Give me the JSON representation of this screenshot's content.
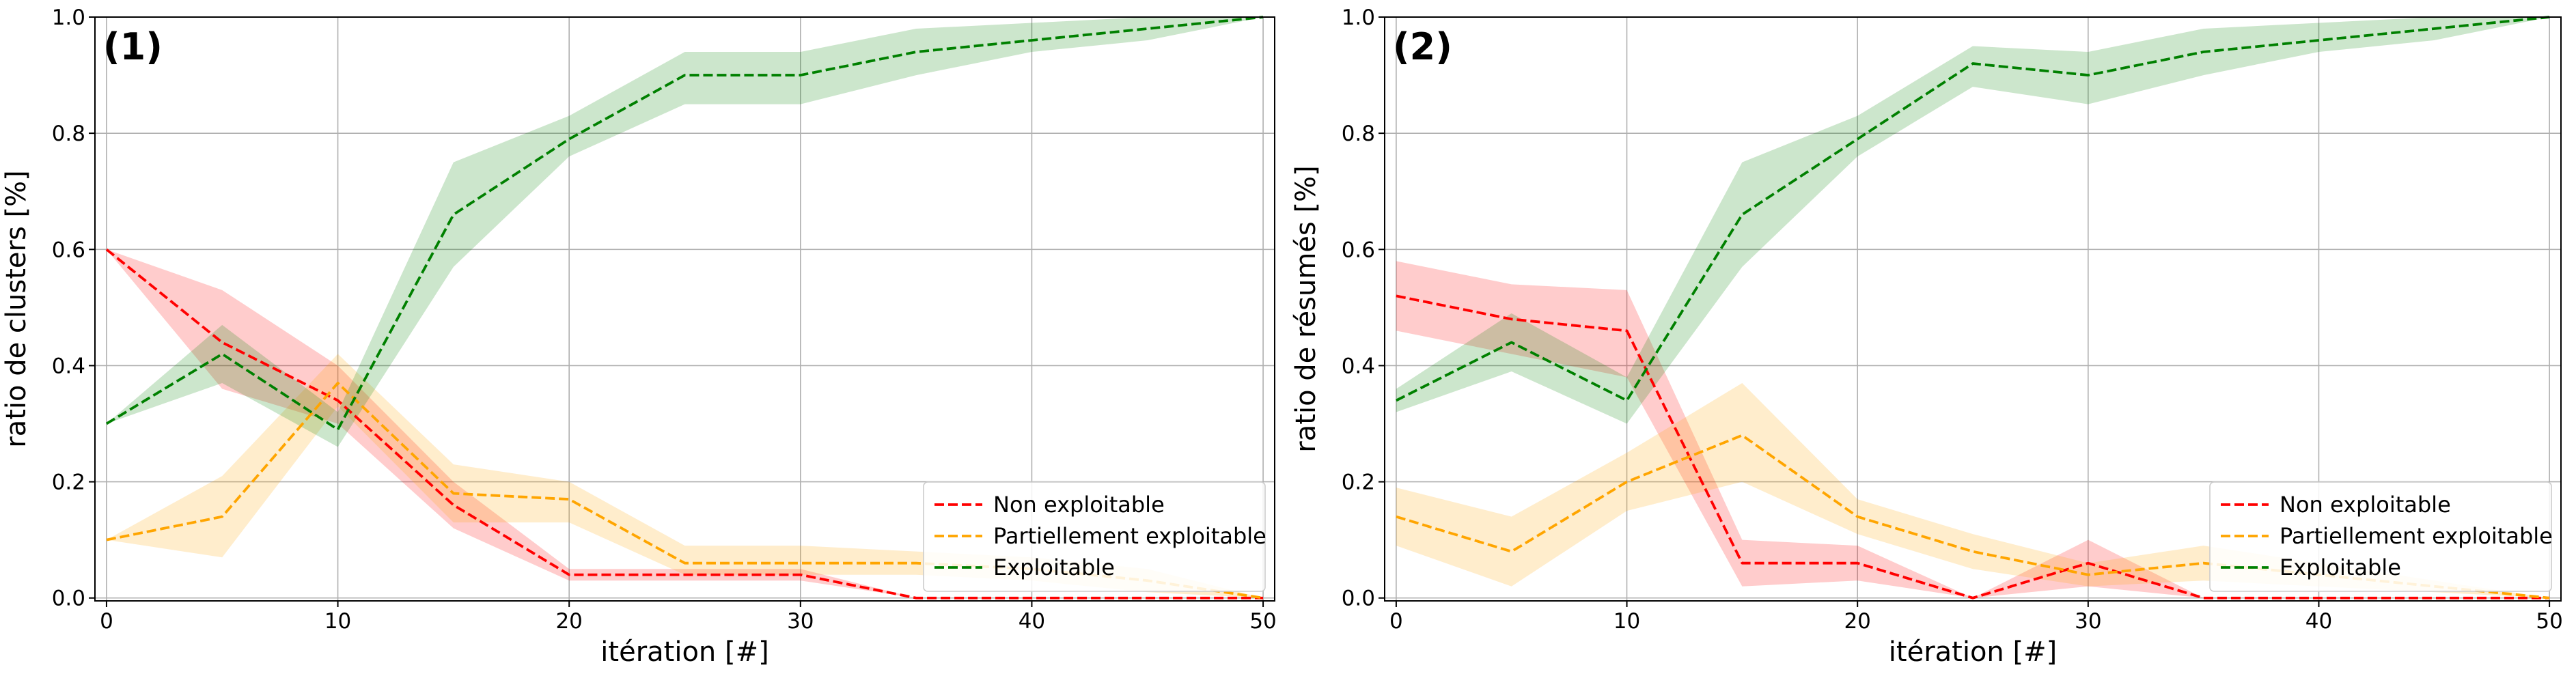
{
  "chart_data": [
    {
      "type": "line",
      "panel_label": "(1)",
      "xlabel": "itération [#]",
      "ylabel": "ratio de clusters [%]",
      "xlim": [
        -0.5,
        50.5
      ],
      "ylim": [
        -0.005,
        1.0
      ],
      "xticks": [
        0,
        10,
        20,
        30,
        40,
        50
      ],
      "yticks": [
        "0.0",
        "0.2",
        "0.4",
        "0.6",
        "0.8",
        "1.0"
      ],
      "grid": true,
      "legend_position": "lower-right",
      "x": [
        0,
        5,
        10,
        15,
        20,
        25,
        30,
        35,
        40,
        45,
        50
      ],
      "series": [
        {
          "name": "Non exploitable",
          "color": "#ff0000",
          "values": [
            0.6,
            0.44,
            0.34,
            0.16,
            0.04,
            0.04,
            0.04,
            0.0,
            0.0,
            0.0,
            0.0
          ],
          "lower": [
            0.6,
            0.36,
            0.3,
            0.12,
            0.03,
            0.03,
            0.03,
            0.0,
            0.0,
            0.0,
            0.0
          ],
          "upper": [
            0.6,
            0.53,
            0.4,
            0.2,
            0.05,
            0.05,
            0.05,
            0.0,
            0.0,
            0.0,
            0.0
          ]
        },
        {
          "name": "Partiellement exploitable",
          "color": "#ffa500",
          "values": [
            0.1,
            0.14,
            0.37,
            0.18,
            0.17,
            0.06,
            0.06,
            0.06,
            0.05,
            0.03,
            0.0
          ],
          "lower": [
            0.1,
            0.07,
            0.33,
            0.13,
            0.13,
            0.04,
            0.04,
            0.04,
            0.03,
            0.01,
            0.0
          ],
          "upper": [
            0.1,
            0.21,
            0.42,
            0.23,
            0.2,
            0.09,
            0.09,
            0.08,
            0.07,
            0.05,
            0.0
          ]
        },
        {
          "name": "Exploitable",
          "color": "#008000",
          "values": [
            0.3,
            0.42,
            0.29,
            0.66,
            0.79,
            0.9,
            0.9,
            0.94,
            0.96,
            0.98,
            1.0
          ],
          "lower": [
            0.3,
            0.37,
            0.26,
            0.57,
            0.76,
            0.85,
            0.85,
            0.9,
            0.94,
            0.96,
            1.0
          ],
          "upper": [
            0.3,
            0.47,
            0.32,
            0.75,
            0.83,
            0.94,
            0.94,
            0.98,
            0.99,
            1.0,
            1.0
          ]
        }
      ]
    },
    {
      "type": "line",
      "panel_label": "(2)",
      "xlabel": "itération [#]",
      "ylabel": "ratio de résumés [%]",
      "xlim": [
        -0.5,
        50.5
      ],
      "ylim": [
        -0.005,
        1.0
      ],
      "xticks": [
        0,
        10,
        20,
        30,
        40,
        50
      ],
      "yticks": [
        "0.0",
        "0.2",
        "0.4",
        "0.6",
        "0.8",
        "1.0"
      ],
      "grid": true,
      "legend_position": "lower-right",
      "x": [
        0,
        5,
        10,
        15,
        20,
        25,
        30,
        35,
        40,
        45,
        50
      ],
      "series": [
        {
          "name": "Non exploitable",
          "color": "#ff0000",
          "values": [
            0.52,
            0.48,
            0.46,
            0.06,
            0.06,
            0.0,
            0.06,
            0.0,
            0.0,
            0.0,
            0.0
          ],
          "lower": [
            0.46,
            0.42,
            0.38,
            0.02,
            0.03,
            0.0,
            0.02,
            0.0,
            0.0,
            0.0,
            0.0
          ],
          "upper": [
            0.58,
            0.54,
            0.53,
            0.1,
            0.09,
            0.0,
            0.1,
            0.0,
            0.0,
            0.0,
            0.0
          ]
        },
        {
          "name": "Partiellement exploitable",
          "color": "#ffa500",
          "values": [
            0.14,
            0.08,
            0.2,
            0.28,
            0.14,
            0.08,
            0.04,
            0.06,
            0.04,
            0.02,
            0.0
          ],
          "lower": [
            0.09,
            0.02,
            0.15,
            0.2,
            0.11,
            0.05,
            0.02,
            0.03,
            0.02,
            0.01,
            0.0
          ],
          "upper": [
            0.19,
            0.14,
            0.25,
            0.37,
            0.17,
            0.11,
            0.06,
            0.09,
            0.06,
            0.03,
            0.0
          ]
        },
        {
          "name": "Exploitable",
          "color": "#008000",
          "values": [
            0.34,
            0.44,
            0.34,
            0.66,
            0.79,
            0.92,
            0.9,
            0.94,
            0.96,
            0.98,
            1.0
          ],
          "lower": [
            0.32,
            0.39,
            0.3,
            0.57,
            0.76,
            0.88,
            0.85,
            0.9,
            0.94,
            0.96,
            1.0
          ],
          "upper": [
            0.36,
            0.49,
            0.38,
            0.75,
            0.83,
            0.95,
            0.94,
            0.98,
            0.99,
            1.0,
            1.0
          ]
        }
      ]
    }
  ]
}
